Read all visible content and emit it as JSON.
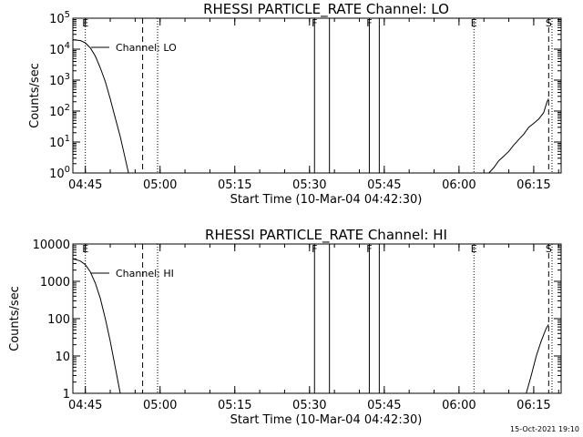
{
  "chart_data": [
    {
      "type": "line",
      "title": "RHESSI PARTICLE_RATE Channel: LO",
      "xlabel": "Start Time (10-Mar-04 04:42:30)",
      "ylabel": "Counts/sec",
      "yscale": "log",
      "xlim": [
        "04:42:30",
        "06:20:30"
      ],
      "ylim": [
        1,
        100000
      ],
      "x_ticks": [
        "04:45",
        "05:00",
        "05:15",
        "05:30",
        "05:45",
        "06:00",
        "06:15"
      ],
      "y_ticks": [
        {
          "value": 1,
          "base": "10",
          "exp": "0"
        },
        {
          "value": 10,
          "base": "10",
          "exp": "1"
        },
        {
          "value": 100,
          "base": "10",
          "exp": "2"
        },
        {
          "value": 1000,
          "base": "10",
          "exp": "3"
        },
        {
          "value": 10000,
          "base": "10",
          "exp": "4"
        },
        {
          "value": 100000,
          "base": "10",
          "exp": "5"
        }
      ],
      "series": [
        {
          "name": "Channel: LO",
          "segments": [
            [
              [
                "04:42:30",
                20000
              ],
              [
                "04:44:00",
                19000
              ],
              [
                "04:45:00",
                16000
              ],
              [
                "04:46:00",
                11000
              ],
              [
                "04:47:00",
                6000
              ],
              [
                "04:48:00",
                2500
              ],
              [
                "04:49:00",
                900
              ],
              [
                "04:50:00",
                250
              ],
              [
                "04:51:00",
                60
              ],
              [
                "04:52:00",
                15
              ],
              [
                "04:53:00",
                3
              ],
              [
                "04:53:40",
                1
              ]
            ],
            [
              [
                "06:06:00",
                1
              ],
              [
                "06:07:00",
                1.5
              ],
              [
                "06:08:00",
                2.5
              ],
              [
                "06:09:00",
                3.5
              ],
              [
                "06:10:00",
                5
              ],
              [
                "06:11:00",
                8
              ],
              [
                "06:12:00",
                12
              ],
              [
                "06:13:00",
                18
              ],
              [
                "06:14:00",
                30
              ],
              [
                "06:15:00",
                40
              ],
              [
                "06:16:00",
                55
              ],
              [
                "06:17:00",
                90
              ],
              [
                "06:17:40",
                200
              ],
              [
                "06:18:00",
                250
              ]
            ]
          ]
        }
      ],
      "markers": [
        {
          "time": "04:45:00",
          "label": "E",
          "style": "dotted"
        },
        {
          "time": "04:56:30",
          "label": "",
          "style": "dashed"
        },
        {
          "time": "04:59:30",
          "label": "",
          "style": "dotted"
        },
        {
          "time": "05:31:00",
          "label": "F",
          "style": "solid"
        },
        {
          "time": "05:34:00",
          "label": "",
          "style": "solid"
        },
        {
          "time": "05:42:00",
          "label": "F",
          "style": "solid"
        },
        {
          "time": "05:44:00",
          "label": "",
          "style": "solid"
        },
        {
          "time": "06:03:00",
          "label": "E",
          "style": "dotted"
        },
        {
          "time": "06:18:00",
          "label": "S",
          "style": "dashed"
        },
        {
          "time": "06:18:40",
          "label": "",
          "style": "dotted"
        }
      ]
    },
    {
      "type": "line",
      "title": "RHESSI PARTICLE_RATE Channel: HI",
      "xlabel": "Start Time (10-Mar-04 04:42:30)",
      "ylabel": "Counts/sec",
      "yscale": "log",
      "xlim": [
        "04:42:30",
        "06:20:30"
      ],
      "ylim": [
        1,
        10000
      ],
      "x_ticks": [
        "04:45",
        "05:00",
        "05:15",
        "05:30",
        "05:45",
        "06:00",
        "06:15"
      ],
      "y_ticks": [
        {
          "value": 1,
          "base": "1",
          "exp": ""
        },
        {
          "value": 10,
          "base": "10",
          "exp": ""
        },
        {
          "value": 100,
          "base": "100",
          "exp": ""
        },
        {
          "value": 1000,
          "base": "1000",
          "exp": ""
        },
        {
          "value": 10000,
          "base": "10000",
          "exp": ""
        }
      ],
      "series": [
        {
          "name": "Channel: HI",
          "segments": [
            [
              [
                "04:42:30",
                4000
              ],
              [
                "04:44:00",
                3500
              ],
              [
                "04:45:00",
                2800
              ],
              [
                "04:46:00",
                1800
              ],
              [
                "04:47:00",
                900
              ],
              [
                "04:48:00",
                350
              ],
              [
                "04:49:00",
                100
              ],
              [
                "04:50:00",
                25
              ],
              [
                "04:51:00",
                5
              ],
              [
                "04:52:00",
                1
              ]
            ],
            [
              [
                "06:13:30",
                1
              ],
              [
                "06:14:30",
                3
              ],
              [
                "06:15:30",
                10
              ],
              [
                "06:16:30",
                25
              ],
              [
                "06:17:30",
                55
              ],
              [
                "06:18:00",
                70
              ]
            ]
          ]
        }
      ],
      "markers": [
        {
          "time": "04:45:00",
          "label": "E",
          "style": "dotted"
        },
        {
          "time": "04:56:30",
          "label": "",
          "style": "dashed"
        },
        {
          "time": "04:59:30",
          "label": "",
          "style": "dotted"
        },
        {
          "time": "05:31:00",
          "label": "F",
          "style": "solid"
        },
        {
          "time": "05:34:00",
          "label": "",
          "style": "solid"
        },
        {
          "time": "05:42:00",
          "label": "F",
          "style": "solid"
        },
        {
          "time": "05:44:00",
          "label": "",
          "style": "solid"
        },
        {
          "time": "06:03:00",
          "label": "E",
          "style": "dotted"
        },
        {
          "time": "06:18:00",
          "label": "S",
          "style": "dashed"
        },
        {
          "time": "06:18:40",
          "label": "",
          "style": "dotted"
        }
      ]
    }
  ],
  "footer": {
    "timestamp": "15-Oct-2021 19:10"
  }
}
